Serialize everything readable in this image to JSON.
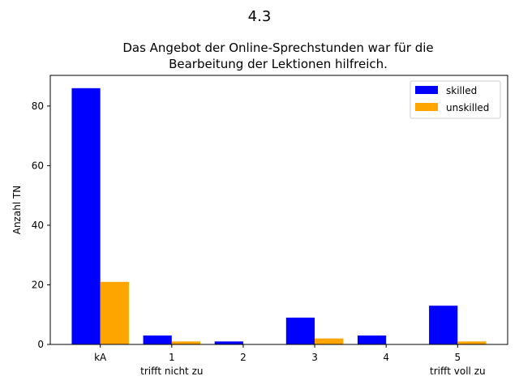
{
  "chart_data": {
    "type": "bar",
    "suptitle": "4.3",
    "title_lines": [
      "Das Angebot der Online-Sprechstunden war für die",
      "Bearbeitung der Lektionen hilfreich."
    ],
    "xlabel": "",
    "ylabel": "Anzahl TN",
    "categories": [
      "kA",
      "1",
      "2",
      "3",
      "4",
      "5"
    ],
    "category_sublabels": [
      "",
      "trifft nicht zu",
      "",
      "",
      "",
      "trifft voll zu"
    ],
    "series": [
      {
        "name": "skilled",
        "color": "#0000ff",
        "values": [
          86,
          3,
          1,
          9,
          3,
          13
        ]
      },
      {
        "name": "unskilled",
        "color": "#ffa500",
        "values": [
          21,
          1,
          0,
          2,
          0,
          1
        ]
      }
    ],
    "ylim": [
      0,
      90.3
    ],
    "yticks": [
      0,
      20,
      40,
      60,
      80
    ],
    "grid": false,
    "legend_position": "upper right"
  }
}
